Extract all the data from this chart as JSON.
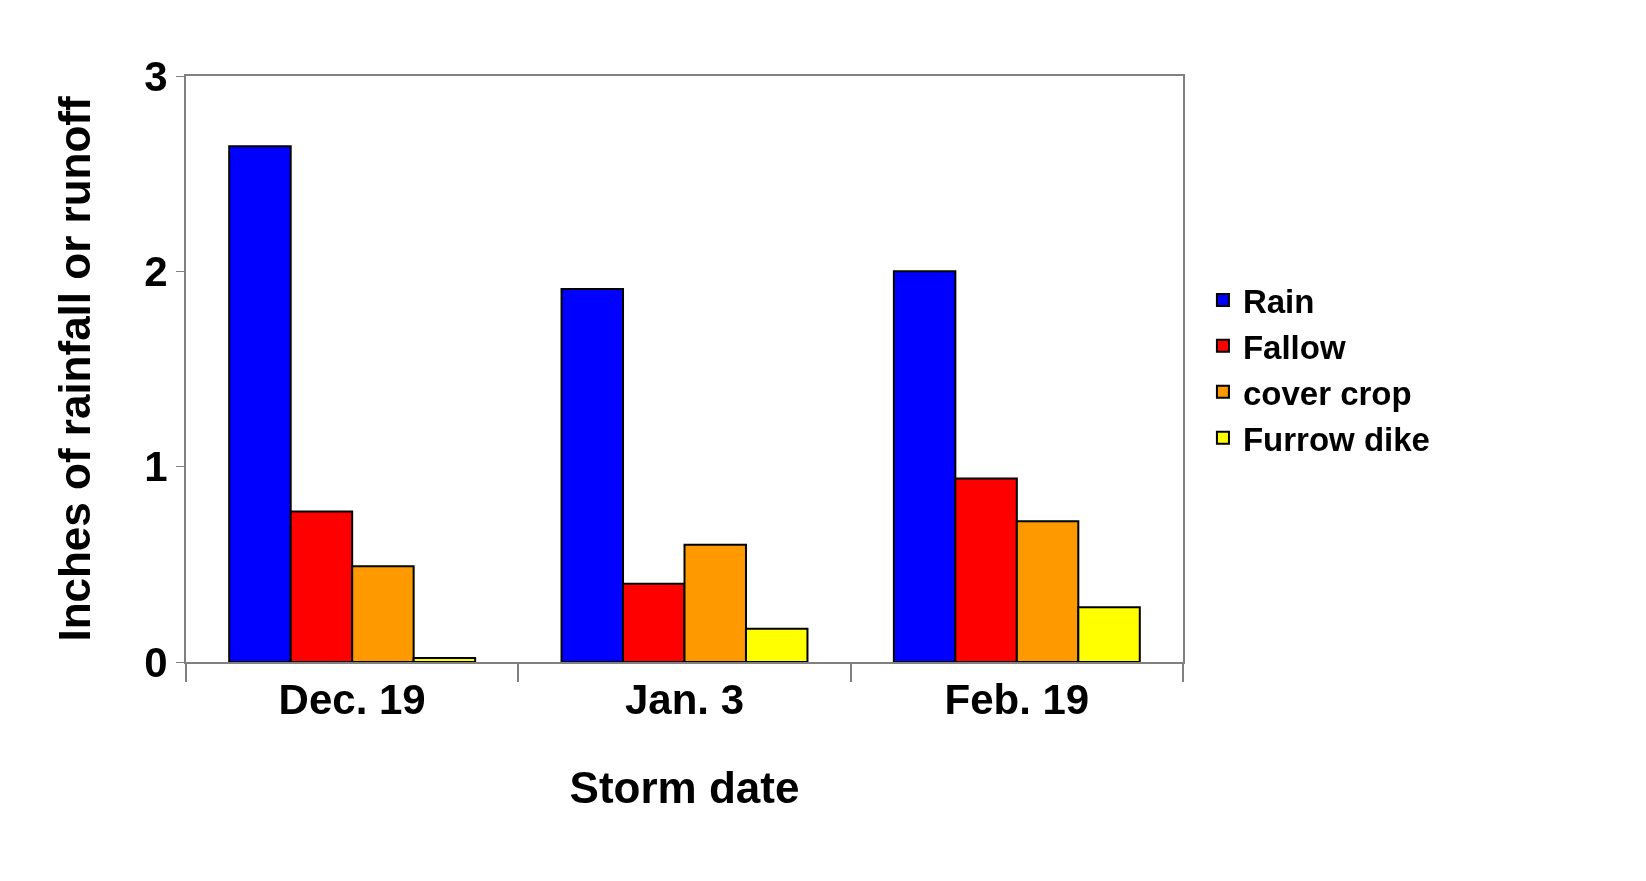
{
  "chart_data": {
    "type": "bar",
    "xlabel": "Storm date",
    "ylabel": "Inches of rainfall or runoff",
    "categories": [
      "Dec. 19",
      "Jan. 3",
      "Feb. 19"
    ],
    "series": [
      {
        "name": "Rain",
        "color": "#0000ff",
        "values": [
          2.64,
          1.91,
          2.0
        ]
      },
      {
        "name": "Fallow",
        "color": "#ff0000",
        "values": [
          0.77,
          0.4,
          0.94
        ]
      },
      {
        "name": "cover crop",
        "color": "#ff9900",
        "values": [
          0.49,
          0.6,
          0.72
        ]
      },
      {
        "name": "Furrow dike",
        "color": "#ffff00",
        "values": [
          0.02,
          0.17,
          0.28
        ]
      }
    ],
    "ylim": [
      0,
      3
    ],
    "yticks": [
      0,
      1,
      2,
      3
    ],
    "grid": false,
    "legend": "right"
  }
}
